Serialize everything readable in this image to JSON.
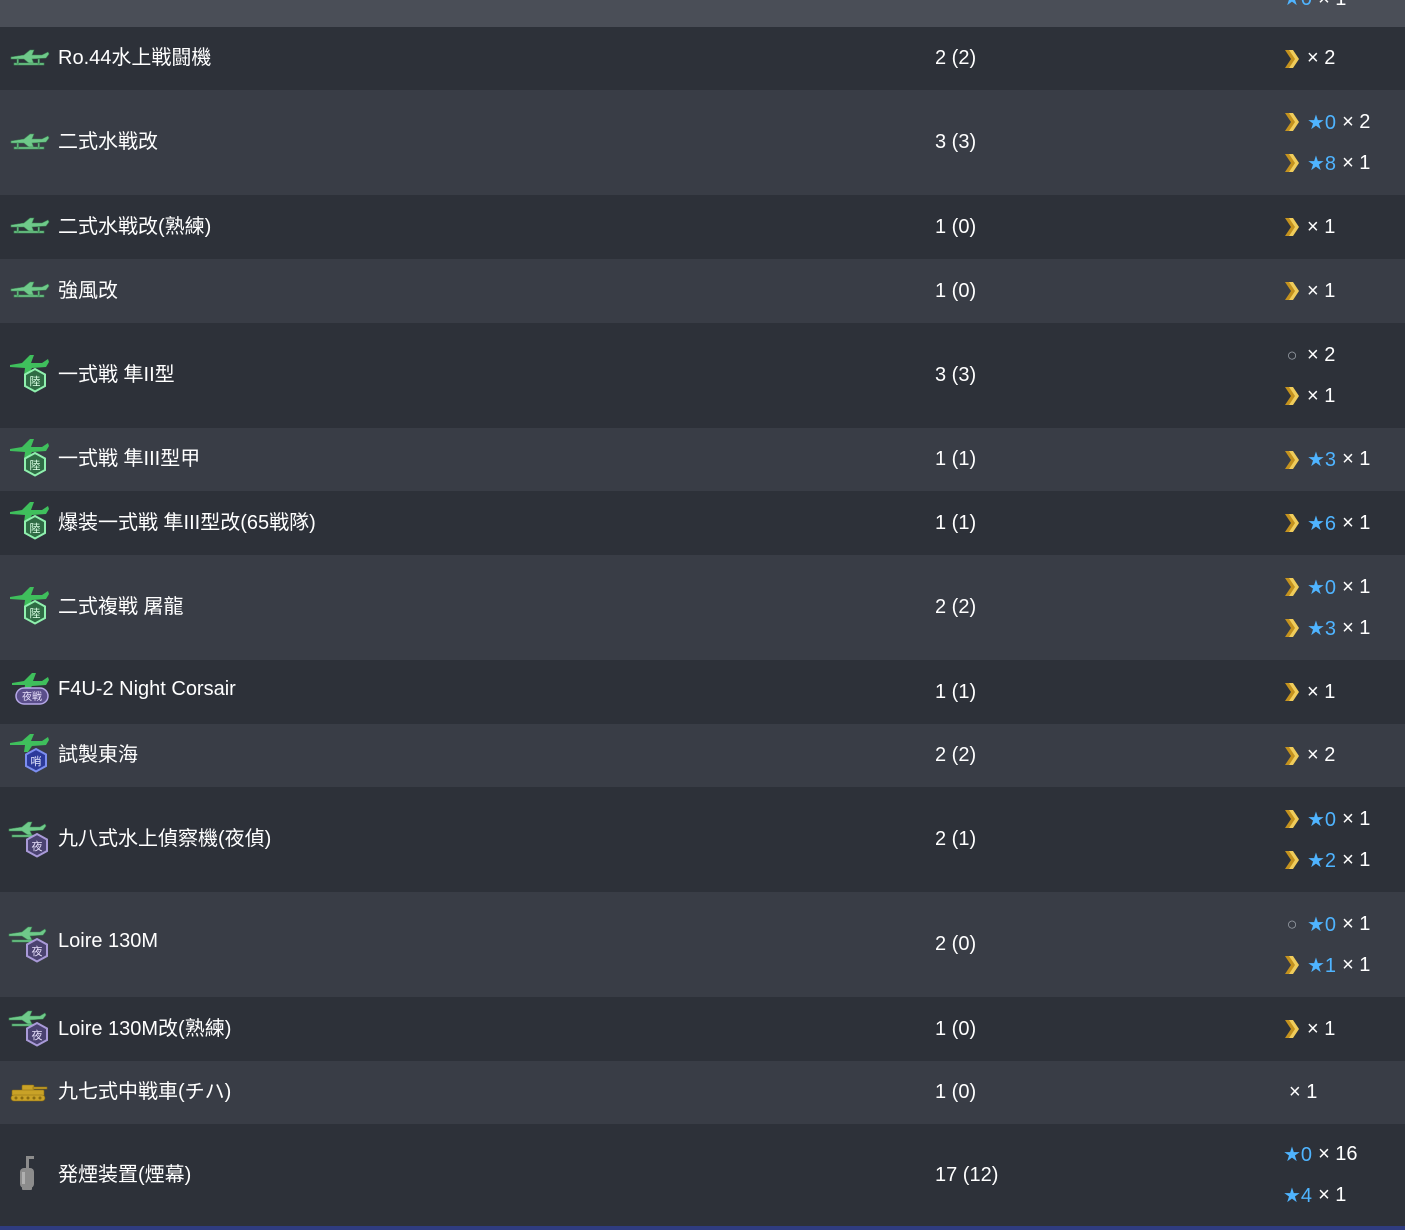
{
  "top_partial": {
    "stars": "★0",
    "mult": "× 1"
  },
  "rows": [
    {
      "icon": "seaplane-fighter-icon",
      "name": "Ro.44水上戦闘機",
      "count": "2 (2)",
      "prof": [
        {
          "icon": "chevron",
          "stars": "",
          "mult": "× 2"
        }
      ]
    },
    {
      "icon": "seaplane-fighter-icon",
      "name": "二式水戦改",
      "count": "3 (3)",
      "prof": [
        {
          "icon": "chevron",
          "stars": "★0",
          "mult": "× 2"
        },
        {
          "icon": "chevron",
          "stars": "★8",
          "mult": "× 1"
        }
      ]
    },
    {
      "icon": "seaplane-fighter-icon",
      "name": "二式水戦改(熟練)",
      "count": "1 (0)",
      "prof": [
        {
          "icon": "chevron",
          "stars": "",
          "mult": "× 1"
        }
      ]
    },
    {
      "icon": "seaplane-fighter-icon",
      "name": "強風改",
      "count": "1 (0)",
      "prof": [
        {
          "icon": "chevron",
          "stars": "",
          "mult": "× 1"
        }
      ]
    },
    {
      "icon": "land-fighter-icon",
      "name": "一式戦 隼II型",
      "count": "3 (3)",
      "prof": [
        {
          "icon": "circle",
          "stars": "",
          "mult": "× 2"
        },
        {
          "icon": "chevron",
          "stars": "",
          "mult": "× 1"
        }
      ]
    },
    {
      "icon": "land-fighter-icon",
      "name": "一式戦 隼III型甲",
      "count": "1 (1)",
      "prof": [
        {
          "icon": "chevron",
          "stars": "★3",
          "mult": "× 1"
        }
      ]
    },
    {
      "icon": "land-fighter-icon",
      "name": "爆装一式戦 隼III型改(65戦隊)",
      "count": "1 (1)",
      "prof": [
        {
          "icon": "chevron",
          "stars": "★6",
          "mult": "× 1"
        }
      ]
    },
    {
      "icon": "land-fighter-icon",
      "name": "二式複戦 屠龍",
      "count": "2 (2)",
      "prof": [
        {
          "icon": "chevron",
          "stars": "★0",
          "mult": "× 1"
        },
        {
          "icon": "chevron",
          "stars": "★3",
          "mult": "× 1"
        }
      ]
    },
    {
      "icon": "night-fighter-icon",
      "name": "F4U-2 Night Corsair",
      "count": "1 (1)",
      "prof": [
        {
          "icon": "chevron",
          "stars": "",
          "mult": "× 1"
        }
      ]
    },
    {
      "icon": "land-recon-icon",
      "name": "試製東海",
      "count": "2 (2)",
      "prof": [
        {
          "icon": "chevron",
          "stars": "",
          "mult": "× 2"
        }
      ]
    },
    {
      "icon": "night-seaplane-icon",
      "name": "九八式水上偵察機(夜偵)",
      "count": "2 (1)",
      "prof": [
        {
          "icon": "chevron",
          "stars": "★0",
          "mult": "× 1"
        },
        {
          "icon": "chevron",
          "stars": "★2",
          "mult": "× 1"
        }
      ]
    },
    {
      "icon": "night-seaplane-icon",
      "name": "Loire 130M",
      "count": "2 (0)",
      "prof": [
        {
          "icon": "circle",
          "stars": "★0",
          "mult": "× 1"
        },
        {
          "icon": "chevron",
          "stars": "★1",
          "mult": "× 1"
        }
      ]
    },
    {
      "icon": "night-seaplane-icon",
      "name": "Loire 130M改(熟練)",
      "count": "1 (0)",
      "prof": [
        {
          "icon": "chevron",
          "stars": "",
          "mult": "× 1"
        }
      ]
    },
    {
      "icon": "tank-icon",
      "name": "九七式中戦車(チハ)",
      "count": "1 (0)",
      "prof": [
        {
          "icon": "none",
          "stars": "",
          "mult": "× 1"
        }
      ]
    },
    {
      "icon": "smoke-generator-icon",
      "name": "発煙装置(煙幕)",
      "count": "17 (12)",
      "prof": [
        {
          "icon": "none-flush",
          "stars": "★0",
          "mult": "× 16"
        },
        {
          "icon": "none-flush",
          "stars": "★4",
          "mult": "× 1"
        }
      ]
    }
  ],
  "colors": {
    "row_odd": "#2d3139",
    "row_even": "#393d46",
    "star": "#4fb4ff",
    "chevron": "#e2b43a",
    "plane_green": "#4ac46a"
  }
}
